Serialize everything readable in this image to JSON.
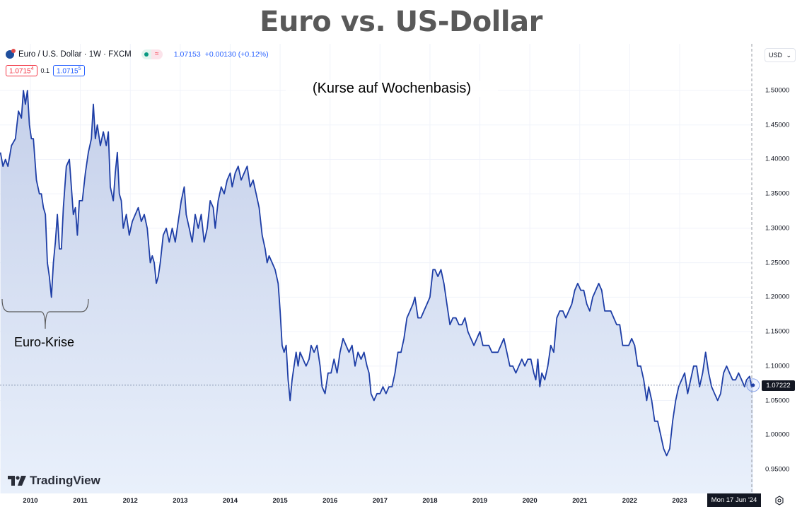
{
  "slide": {
    "title": "Euro vs. US-Dollar",
    "subtitle": "(Kurse auf Wochenbasis)"
  },
  "legend": {
    "symbol_icon": "eur-usd-flag-icon",
    "symbol": "Euro / U.S. Dollar · 1W · FXCM",
    "market_status_icon": "market-open-dot-icon",
    "delay_icon": "wave-icon",
    "last_price": "1.07153",
    "change": "+0.00130 (+0.12%)",
    "bid": "1.0715",
    "bid_sub": "4",
    "spread": "0.1",
    "ask": "1.0715",
    "ask_sub": "5"
  },
  "price_scale": {
    "currency": "USD",
    "current_price": "1.07222",
    "settings_icon": "gear-icon"
  },
  "time_scale": {
    "crosshair_date": "Mon 17 Jun '24"
  },
  "branding": {
    "logo_text": "TradingView"
  },
  "annotation": {
    "label": "Euro-Krise",
    "range": [
      2009.5,
      2011.2
    ]
  },
  "colors": {
    "line": "#1e3ea6",
    "fill_top": "#c5d0ea",
    "fill_bottom": "#e9f0fb",
    "grid": "#f0f3fa",
    "text": "#131722",
    "title": "#595959"
  },
  "chart_data": {
    "type": "area",
    "title": "Euro vs. US-Dollar",
    "subtitle": "(Kurse auf Wochenbasis)",
    "series_name": "Euro / U.S. Dollar · 1W · FXCM",
    "xlabel": "",
    "ylabel": "USD",
    "x_ticks": [
      "2010",
      "2011",
      "2012",
      "2013",
      "2014",
      "2015",
      "2016",
      "2017",
      "2018",
      "2019",
      "2020",
      "2021",
      "2022",
      "2023"
    ],
    "y_ticks": [
      "1.50000",
      "1.45000",
      "1.40000",
      "1.35000",
      "1.30000",
      "1.25000",
      "1.20000",
      "1.15000",
      "1.10000",
      "1.05000",
      "1.00000",
      "0.95000"
    ],
    "ylim": [
      0.93,
      1.52
    ],
    "xlim": [
      2009.4,
      2024.55
    ],
    "grid": true,
    "last_value": 1.07222,
    "points": [
      [
        2009.4,
        1.41
      ],
      [
        2009.45,
        1.39
      ],
      [
        2009.5,
        1.4
      ],
      [
        2009.55,
        1.39
      ],
      [
        2009.62,
        1.42
      ],
      [
        2009.7,
        1.43
      ],
      [
        2009.76,
        1.47
      ],
      [
        2009.82,
        1.46
      ],
      [
        2009.86,
        1.5
      ],
      [
        2009.9,
        1.48
      ],
      [
        2009.94,
        1.5
      ],
      [
        2009.98,
        1.45
      ],
      [
        2010.02,
        1.43
      ],
      [
        2010.06,
        1.43
      ],
      [
        2010.12,
        1.37
      ],
      [
        2010.18,
        1.35
      ],
      [
        2010.22,
        1.35
      ],
      [
        2010.26,
        1.33
      ],
      [
        2010.3,
        1.32
      ],
      [
        2010.34,
        1.25
      ],
      [
        2010.38,
        1.23
      ],
      [
        2010.42,
        1.2
      ],
      [
        2010.46,
        1.25
      ],
      [
        2010.5,
        1.28
      ],
      [
        2010.54,
        1.32
      ],
      [
        2010.58,
        1.27
      ],
      [
        2010.62,
        1.27
      ],
      [
        2010.66,
        1.33
      ],
      [
        2010.72,
        1.39
      ],
      [
        2010.78,
        1.4
      ],
      [
        2010.82,
        1.36
      ],
      [
        2010.86,
        1.32
      ],
      [
        2010.9,
        1.33
      ],
      [
        2010.94,
        1.29
      ],
      [
        2010.98,
        1.34
      ],
      [
        2011.04,
        1.34
      ],
      [
        2011.1,
        1.38
      ],
      [
        2011.16,
        1.41
      ],
      [
        2011.22,
        1.43
      ],
      [
        2011.26,
        1.48
      ],
      [
        2011.3,
        1.43
      ],
      [
        2011.34,
        1.45
      ],
      [
        2011.4,
        1.42
      ],
      [
        2011.46,
        1.44
      ],
      [
        2011.52,
        1.42
      ],
      [
        2011.56,
        1.44
      ],
      [
        2011.6,
        1.36
      ],
      [
        2011.66,
        1.34
      ],
      [
        2011.7,
        1.38
      ],
      [
        2011.74,
        1.41
      ],
      [
        2011.78,
        1.35
      ],
      [
        2011.82,
        1.34
      ],
      [
        2011.86,
        1.3
      ],
      [
        2011.92,
        1.32
      ],
      [
        2011.98,
        1.29
      ],
      [
        2012.04,
        1.31
      ],
      [
        2012.1,
        1.32
      ],
      [
        2012.16,
        1.33
      ],
      [
        2012.22,
        1.31
      ],
      [
        2012.28,
        1.32
      ],
      [
        2012.34,
        1.3
      ],
      [
        2012.4,
        1.25
      ],
      [
        2012.44,
        1.26
      ],
      [
        2012.48,
        1.25
      ],
      [
        2012.52,
        1.22
      ],
      [
        2012.56,
        1.23
      ],
      [
        2012.6,
        1.25
      ],
      [
        2012.66,
        1.29
      ],
      [
        2012.72,
        1.3
      ],
      [
        2012.78,
        1.28
      ],
      [
        2012.84,
        1.3
      ],
      [
        2012.9,
        1.28
      ],
      [
        2012.96,
        1.31
      ],
      [
        2013.02,
        1.34
      ],
      [
        2013.08,
        1.36
      ],
      [
        2013.12,
        1.32
      ],
      [
        2013.18,
        1.3
      ],
      [
        2013.24,
        1.28
      ],
      [
        2013.3,
        1.32
      ],
      [
        2013.36,
        1.3
      ],
      [
        2013.42,
        1.32
      ],
      [
        2013.48,
        1.28
      ],
      [
        2013.54,
        1.3
      ],
      [
        2013.6,
        1.34
      ],
      [
        2013.66,
        1.33
      ],
      [
        2013.7,
        1.3
      ],
      [
        2013.76,
        1.34
      ],
      [
        2013.82,
        1.36
      ],
      [
        2013.88,
        1.35
      ],
      [
        2013.94,
        1.37
      ],
      [
        2014.0,
        1.38
      ],
      [
        2014.04,
        1.36
      ],
      [
        2014.1,
        1.38
      ],
      [
        2014.16,
        1.39
      ],
      [
        2014.22,
        1.37
      ],
      [
        2014.28,
        1.38
      ],
      [
        2014.34,
        1.39
      ],
      [
        2014.4,
        1.36
      ],
      [
        2014.46,
        1.37
      ],
      [
        2014.52,
        1.35
      ],
      [
        2014.58,
        1.33
      ],
      [
        2014.64,
        1.29
      ],
      [
        2014.7,
        1.27
      ],
      [
        2014.74,
        1.25
      ],
      [
        2014.78,
        1.26
      ],
      [
        2014.84,
        1.25
      ],
      [
        2014.9,
        1.24
      ],
      [
        2014.96,
        1.22
      ],
      [
        2015.0,
        1.18
      ],
      [
        2015.04,
        1.13
      ],
      [
        2015.08,
        1.12
      ],
      [
        2015.12,
        1.13
      ],
      [
        2015.16,
        1.08
      ],
      [
        2015.2,
        1.05
      ],
      [
        2015.24,
        1.08
      ],
      [
        2015.28,
        1.1
      ],
      [
        2015.32,
        1.12
      ],
      [
        2015.36,
        1.1
      ],
      [
        2015.4,
        1.12
      ],
      [
        2015.46,
        1.11
      ],
      [
        2015.52,
        1.1
      ],
      [
        2015.58,
        1.11
      ],
      [
        2015.62,
        1.13
      ],
      [
        2015.68,
        1.12
      ],
      [
        2015.74,
        1.13
      ],
      [
        2015.8,
        1.1
      ],
      [
        2015.84,
        1.07
      ],
      [
        2015.9,
        1.06
      ],
      [
        2015.96,
        1.09
      ],
      [
        2016.02,
        1.09
      ],
      [
        2016.08,
        1.11
      ],
      [
        2016.14,
        1.09
      ],
      [
        2016.2,
        1.12
      ],
      [
        2016.26,
        1.14
      ],
      [
        2016.32,
        1.13
      ],
      [
        2016.38,
        1.12
      ],
      [
        2016.44,
        1.13
      ],
      [
        2016.5,
        1.1
      ],
      [
        2016.56,
        1.12
      ],
      [
        2016.62,
        1.11
      ],
      [
        2016.68,
        1.12
      ],
      [
        2016.74,
        1.1
      ],
      [
        2016.78,
        1.09
      ],
      [
        2016.82,
        1.06
      ],
      [
        2016.88,
        1.05
      ],
      [
        2016.94,
        1.06
      ],
      [
        2017.0,
        1.06
      ],
      [
        2017.06,
        1.07
      ],
      [
        2017.12,
        1.06
      ],
      [
        2017.18,
        1.07
      ],
      [
        2017.24,
        1.07
      ],
      [
        2017.3,
        1.09
      ],
      [
        2017.36,
        1.12
      ],
      [
        2017.42,
        1.12
      ],
      [
        2017.48,
        1.14
      ],
      [
        2017.54,
        1.17
      ],
      [
        2017.6,
        1.18
      ],
      [
        2017.66,
        1.19
      ],
      [
        2017.7,
        1.2
      ],
      [
        2017.76,
        1.17
      ],
      [
        2017.82,
        1.17
      ],
      [
        2017.88,
        1.18
      ],
      [
        2017.94,
        1.19
      ],
      [
        2018.0,
        1.2
      ],
      [
        2018.06,
        1.24
      ],
      [
        2018.1,
        1.24
      ],
      [
        2018.16,
        1.23
      ],
      [
        2018.22,
        1.24
      ],
      [
        2018.28,
        1.22
      ],
      [
        2018.34,
        1.19
      ],
      [
        2018.4,
        1.16
      ],
      [
        2018.46,
        1.17
      ],
      [
        2018.52,
        1.17
      ],
      [
        2018.58,
        1.16
      ],
      [
        2018.64,
        1.16
      ],
      [
        2018.7,
        1.17
      ],
      [
        2018.76,
        1.15
      ],
      [
        2018.82,
        1.14
      ],
      [
        2018.88,
        1.13
      ],
      [
        2018.94,
        1.14
      ],
      [
        2019.0,
        1.15
      ],
      [
        2019.06,
        1.13
      ],
      [
        2019.12,
        1.13
      ],
      [
        2019.18,
        1.13
      ],
      [
        2019.24,
        1.12
      ],
      [
        2019.3,
        1.12
      ],
      [
        2019.36,
        1.12
      ],
      [
        2019.42,
        1.13
      ],
      [
        2019.48,
        1.14
      ],
      [
        2019.54,
        1.12
      ],
      [
        2019.6,
        1.1
      ],
      [
        2019.66,
        1.1
      ],
      [
        2019.72,
        1.09
      ],
      [
        2019.78,
        1.1
      ],
      [
        2019.84,
        1.11
      ],
      [
        2019.9,
        1.1
      ],
      [
        2019.96,
        1.11
      ],
      [
        2020.02,
        1.11
      ],
      [
        2020.08,
        1.09
      ],
      [
        2020.12,
        1.08
      ],
      [
        2020.16,
        1.11
      ],
      [
        2020.2,
        1.07
      ],
      [
        2020.24,
        1.09
      ],
      [
        2020.3,
        1.08
      ],
      [
        2020.36,
        1.1
      ],
      [
        2020.42,
        1.13
      ],
      [
        2020.48,
        1.12
      ],
      [
        2020.54,
        1.17
      ],
      [
        2020.6,
        1.18
      ],
      [
        2020.66,
        1.18
      ],
      [
        2020.72,
        1.17
      ],
      [
        2020.78,
        1.18
      ],
      [
        2020.84,
        1.19
      ],
      [
        2020.9,
        1.21
      ],
      [
        2020.96,
        1.22
      ],
      [
        2021.02,
        1.21
      ],
      [
        2021.08,
        1.21
      ],
      [
        2021.14,
        1.19
      ],
      [
        2021.2,
        1.18
      ],
      [
        2021.26,
        1.2
      ],
      [
        2021.32,
        1.21
      ],
      [
        2021.38,
        1.22
      ],
      [
        2021.44,
        1.21
      ],
      [
        2021.5,
        1.18
      ],
      [
        2021.56,
        1.18
      ],
      [
        2021.62,
        1.18
      ],
      [
        2021.68,
        1.17
      ],
      [
        2021.74,
        1.16
      ],
      [
        2021.8,
        1.16
      ],
      [
        2021.86,
        1.13
      ],
      [
        2021.92,
        1.13
      ],
      [
        2021.98,
        1.13
      ],
      [
        2022.04,
        1.14
      ],
      [
        2022.1,
        1.13
      ],
      [
        2022.16,
        1.1
      ],
      [
        2022.22,
        1.1
      ],
      [
        2022.28,
        1.08
      ],
      [
        2022.34,
        1.05
      ],
      [
        2022.38,
        1.07
      ],
      [
        2022.44,
        1.05
      ],
      [
        2022.5,
        1.02
      ],
      [
        2022.56,
        1.02
      ],
      [
        2022.62,
        1.0
      ],
      [
        2022.68,
        0.98
      ],
      [
        2022.74,
        0.97
      ],
      [
        2022.8,
        0.98
      ],
      [
        2022.86,
        1.02
      ],
      [
        2022.92,
        1.05
      ],
      [
        2022.98,
        1.07
      ],
      [
        2023.04,
        1.08
      ],
      [
        2023.1,
        1.09
      ],
      [
        2023.16,
        1.06
      ],
      [
        2023.22,
        1.08
      ],
      [
        2023.28,
        1.1
      ],
      [
        2023.34,
        1.1
      ],
      [
        2023.4,
        1.07
      ],
      [
        2023.46,
        1.09
      ],
      [
        2023.52,
        1.12
      ],
      [
        2023.58,
        1.09
      ],
      [
        2023.64,
        1.07
      ],
      [
        2023.7,
        1.06
      ],
      [
        2023.76,
        1.05
      ],
      [
        2023.82,
        1.06
      ],
      [
        2023.88,
        1.09
      ],
      [
        2023.94,
        1.1
      ],
      [
        2024.0,
        1.09
      ],
      [
        2024.06,
        1.08
      ],
      [
        2024.12,
        1.08
      ],
      [
        2024.18,
        1.09
      ],
      [
        2024.24,
        1.08
      ],
      [
        2024.3,
        1.07
      ],
      [
        2024.34,
        1.08
      ],
      [
        2024.4,
        1.085
      ],
      [
        2024.44,
        1.07
      ],
      [
        2024.47,
        1.0722
      ]
    ]
  }
}
